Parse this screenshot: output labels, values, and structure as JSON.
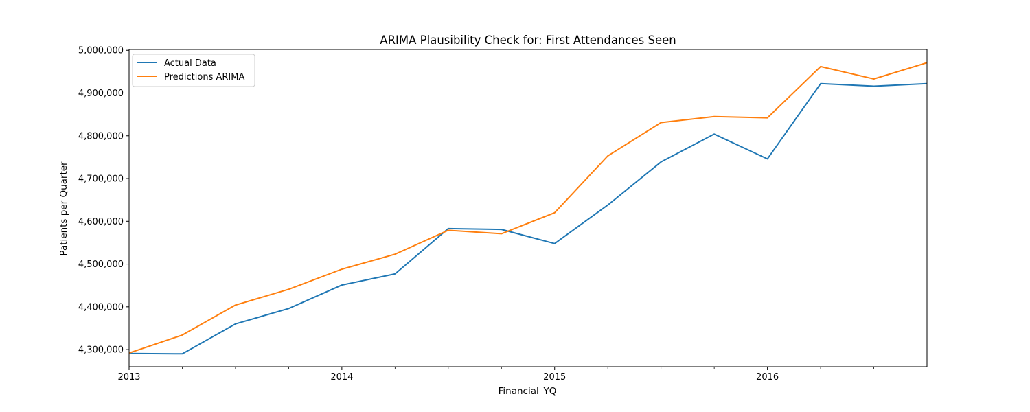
{
  "chart_data": {
    "type": "line",
    "title": "ARIMA Plausibility Check for: First Attendances Seen",
    "xlabel": "Financial_YQ",
    "ylabel": "Patients per Quarter",
    "x": [
      "2013Q1",
      "2013Q2",
      "2013Q3",
      "2013Q4",
      "2014Q1",
      "2014Q2",
      "2014Q3",
      "2014Q4",
      "2015Q1",
      "2015Q2",
      "2015Q3",
      "2015Q4",
      "2016Q1",
      "2016Q2",
      "2016Q3",
      "2016Q4"
    ],
    "x_major_ticks": [
      {
        "x": "2013Q1",
        "label": "2013"
      },
      {
        "x": "2014Q1",
        "label": "2014"
      },
      {
        "x": "2015Q1",
        "label": "2015"
      },
      {
        "x": "2016Q1",
        "label": "2016"
      }
    ],
    "x_minor_ticks": [
      "2013Q2",
      "2013Q3",
      "2013Q4",
      "2014Q2",
      "2014Q3",
      "2014Q4",
      "2015Q2",
      "2015Q3",
      "2015Q4",
      "2016Q2",
      "2016Q3"
    ],
    "xlim": [
      "2013Q1",
      "2016Q4"
    ],
    "ylim": [
      4260000,
      5002000
    ],
    "y_ticks": [
      4300000,
      4400000,
      4500000,
      4600000,
      4700000,
      4800000,
      4900000,
      5000000
    ],
    "y_tick_labels": [
      "4,300,000",
      "4,400,000",
      "4,500,000",
      "4,600,000",
      "4,700,000",
      "4,800,000",
      "4,900,000",
      "5,000,000"
    ],
    "grid": false,
    "legend_position": "top-left",
    "series": [
      {
        "name": "Actual Data",
        "color": "#1f77b4",
        "values": [
          4291000,
          4290000,
          4360000,
          4396000,
          4451000,
          4477000,
          4583000,
          4581000,
          4548000,
          4638000,
          4739000,
          4804000,
          4746000,
          4922000,
          4916000,
          4922000
        ]
      },
      {
        "name": "Predictions ARIMA",
        "color": "#ff7f0e",
        "values": [
          4292000,
          4334000,
          4404000,
          4441000,
          4488000,
          4523000,
          4579000,
          4571000,
          4620000,
          4753000,
          4831000,
          4845000,
          4842000,
          4962000,
          4933000,
          4971000
        ]
      }
    ]
  }
}
